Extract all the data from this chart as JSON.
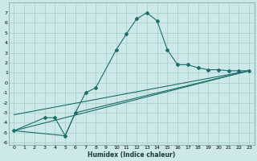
{
  "title": "",
  "xlabel": "Humidex (Indice chaleur)",
  "bg_color": "#cce8e8",
  "grid_color": "#aacccc",
  "line_color": "#1a6e6a",
  "xlim": [
    -0.5,
    23.5
  ],
  "ylim": [
    -6.2,
    8.0
  ],
  "xticks": [
    0,
    1,
    2,
    3,
    4,
    5,
    6,
    7,
    8,
    9,
    10,
    11,
    12,
    13,
    14,
    15,
    16,
    17,
    18,
    19,
    20,
    21,
    22,
    23
  ],
  "yticks": [
    -6,
    -5,
    -4,
    -3,
    -2,
    -1,
    0,
    1,
    2,
    3,
    4,
    5,
    6,
    7
  ],
  "series1_x": [
    0,
    3,
    4,
    5,
    6,
    7,
    8,
    10,
    11,
    12,
    13,
    14,
    15,
    16,
    17,
    18,
    19,
    20,
    21,
    22,
    23
  ],
  "series1_y": [
    -4.8,
    -3.5,
    -3.5,
    -5.3,
    -3.0,
    -1.0,
    -0.5,
    3.3,
    4.9,
    6.4,
    7.0,
    6.2,
    3.3,
    1.8,
    1.8,
    1.5,
    1.3,
    1.3,
    1.2,
    1.2,
    1.2
  ],
  "series2_x": [
    0,
    5,
    6,
    23
  ],
  "series2_y": [
    -4.8,
    -5.3,
    -3.0,
    1.2
  ],
  "series3_x": [
    0,
    23
  ],
  "series3_y": [
    -4.8,
    1.2
  ],
  "series4_x": [
    0,
    23
  ],
  "series4_y": [
    -3.2,
    1.2
  ],
  "tick_fontsize": 4.5,
  "xlabel_fontsize": 5.5
}
